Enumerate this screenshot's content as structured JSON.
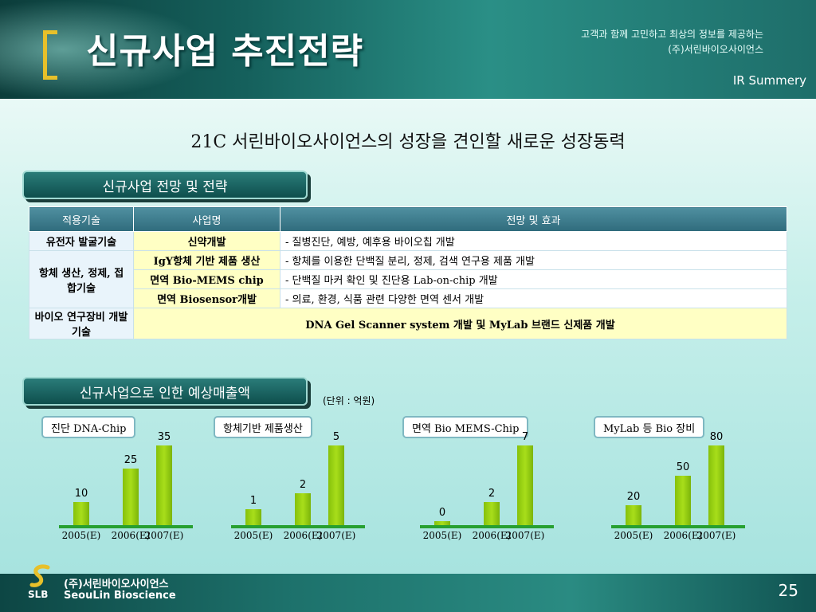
{
  "header": {
    "title": "신규사업 추진전략",
    "tagline": "고객과 함께 고민하고 최상의 정보를 제공하는",
    "company": "(주)서린바이오사이언스",
    "section": "IR Summery"
  },
  "headline": "21C 서린바이오사이언스의 성장을 견인할 새로운 성장동력",
  "strategy": {
    "banner": "신규사업 전망 및 전략",
    "columns": [
      "적용기술",
      "사업명",
      "전망 및 효과"
    ],
    "rows": [
      {
        "tech": "유전자 발굴기술",
        "biz": "신약개발",
        "effect": "- 질병진단, 예방, 예후용 바이오칩 개발"
      },
      {
        "tech": "항체 생산, 정제, 접합기술",
        "biz": "IgY항체 기반 제품 생산",
        "effect": "- 항체를 이용한 단백질 분리, 정제, 검색 연구용 제품 개발"
      },
      {
        "biz": "면역 Bio-MEMS chip",
        "effect": "- 단백질 마커 확인 및 진단용 Lab-on-chip 개발"
      },
      {
        "biz": "면역 Biosensor개발",
        "effect": "- 의료, 환경, 식품 관련 다양한 면역 센서 개발"
      },
      {
        "tech": "바이오 연구장비 개발기술",
        "effect": "DNA Gel Scanner system 개발 및 MyLab 브랜드 신제품 개발"
      }
    ]
  },
  "sales": {
    "banner": "신규사업으로 인한 예상매출액",
    "unit": "(단위 : 억원)"
  },
  "chart_data": [
    {
      "type": "bar",
      "title": "진단 DNA-Chip",
      "categories": [
        "2005(E)",
        "2006(E)",
        "2007(E)"
      ],
      "values": [
        10,
        25,
        35
      ],
      "ylim": [
        0,
        35
      ]
    },
    {
      "type": "bar",
      "title": "항체기반 제품생산",
      "categories": [
        "2005(E)",
        "2006(E)",
        "2007(E)"
      ],
      "values": [
        1,
        2,
        5
      ],
      "ylim": [
        0,
        5
      ]
    },
    {
      "type": "bar",
      "title": "면역 Bio MEMS-Chip",
      "categories": [
        "2005(E)",
        "2006(E)",
        "2007(E)"
      ],
      "values": [
        0,
        2,
        7
      ],
      "ylim": [
        0,
        7
      ]
    },
    {
      "type": "bar",
      "title": "MyLab 등 Bio 장비",
      "categories": [
        "2005(E)",
        "2006(E)",
        "2007(E)"
      ],
      "values": [
        20,
        50,
        80
      ],
      "ylim": [
        0,
        80
      ]
    }
  ],
  "footer": {
    "company_ko": "(주)서린바이오사이언스",
    "company_en": "SeouLin Bioscience",
    "logo_text": "SLB",
    "page": "25"
  },
  "colors": {
    "accent": "#e7c02a",
    "bar": "#9ad414",
    "baseline": "#27a030",
    "header": "#15605c"
  }
}
